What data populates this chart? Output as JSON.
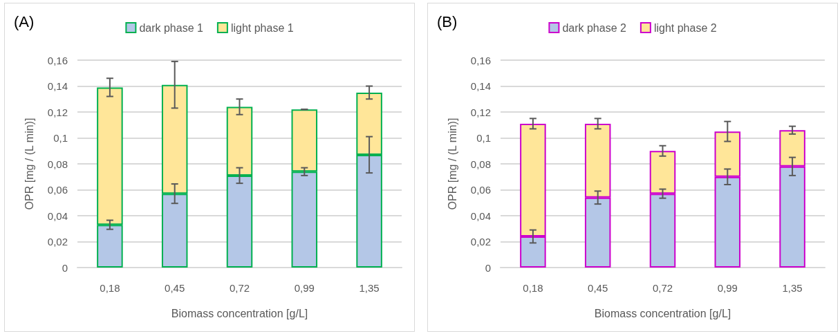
{
  "chart_data": [
    {
      "type": "bar",
      "title": "(A)",
      "xlabel": "Biomass concentration [g/L]",
      "ylabel": "OPR [mg / (L min)]",
      "categories": [
        "0,18",
        "0,45",
        "0,72",
        "0,99",
        "1,35"
      ],
      "stacked": true,
      "legend": "top",
      "grid": "y",
      "ylim": [
        0,
        0.16
      ],
      "yticks": [
        {
          "value": 0,
          "label": "0"
        },
        {
          "value": 0.02,
          "label": "0,02"
        },
        {
          "value": 0.04,
          "label": "0,04"
        },
        {
          "value": 0.06,
          "label": "0,06"
        },
        {
          "value": 0.08,
          "label": "0,08"
        },
        {
          "value": 0.1,
          "label": "0,1"
        },
        {
          "value": 0.12,
          "label": "0,12"
        },
        {
          "value": 0.14,
          "label": "0,14"
        },
        {
          "value": 0.16,
          "label": "0,16"
        }
      ],
      "series": [
        {
          "name": "dark phase 1",
          "color": "#b4c7e7",
          "values": [
            0.033,
            0.057,
            0.071,
            0.074,
            0.087
          ],
          "errors": [
            0.0035,
            0.0075,
            0.006,
            0.003,
            0.014
          ]
        },
        {
          "name": "light phase 1",
          "color": "#ffe699",
          "values": [
            0.106,
            0.084,
            0.053,
            0.048,
            0.048
          ],
          "errors": [
            0.007,
            0.018,
            0.006,
            0,
            0.005
          ]
        }
      ]
    },
    {
      "type": "bar",
      "title": "(B)",
      "xlabel": "Biomass concentration [g/L]",
      "ylabel": "OPR [mg / (L min)]",
      "categories": [
        "0,18",
        "0,45",
        "0,72",
        "0,99",
        "1,35"
      ],
      "stacked": true,
      "legend": "top",
      "grid": "y",
      "ylim": [
        0,
        0.16
      ],
      "yticks": [
        {
          "value": 0,
          "label": "0"
        },
        {
          "value": 0.02,
          "label": "0,02"
        },
        {
          "value": 0.04,
          "label": "0,04"
        },
        {
          "value": 0.06,
          "label": "0,06"
        },
        {
          "value": 0.08,
          "label": "0,08"
        },
        {
          "value": 0.1,
          "label": "0,1"
        },
        {
          "value": 0.12,
          "label": "0,12"
        },
        {
          "value": 0.14,
          "label": "0,14"
        },
        {
          "value": 0.16,
          "label": "0,16"
        }
      ],
      "series": [
        {
          "name": "dark phase 2",
          "color": "#b4c7e7",
          "values": [
            0.024,
            0.054,
            0.057,
            0.07,
            0.078
          ],
          "errors": [
            0.005,
            0.005,
            0.0035,
            0.006,
            0.007
          ]
        },
        {
          "name": "light phase 2",
          "color": "#ffe699",
          "values": [
            0.087,
            0.057,
            0.033,
            0.035,
            0.028
          ],
          "errors": [
            0.004,
            0.004,
            0.004,
            0.0077,
            0.003
          ]
        }
      ]
    }
  ]
}
